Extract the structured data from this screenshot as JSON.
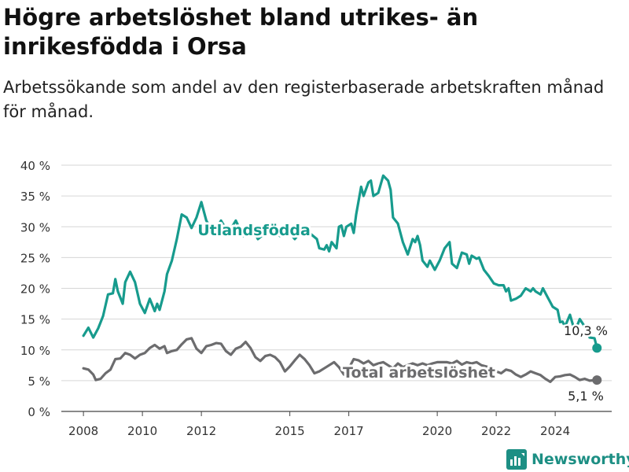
{
  "title": "Högre arbetslöshet bland utrikes- än inrikesfödda i Orsa",
  "subtitle": "Arbetssökande som andel av den registerbaserade arbetskraften månad för månad.",
  "brand": {
    "name": "Newsworthy",
    "icon": "newsworthy-logo-icon",
    "color": "#1d8f84"
  },
  "chart_data": {
    "type": "line",
    "title": "Högre arbetslöshet bland utrikes- än inrikesfödda i Orsa",
    "subtitle": "Arbetssökande som andel av den registerbaserade arbetskraften månad för månad.",
    "xlabel": "",
    "ylabel": "",
    "x_ticks": [
      "2008",
      "2010",
      "2012",
      "2015",
      "2017",
      "2020",
      "2022",
      "2024"
    ],
    "y_ticks": [
      "0 %",
      "5 %",
      "10 %",
      "15 %",
      "20 %",
      "25 %",
      "30 %",
      "35 %",
      "40 %"
    ],
    "ylim": [
      0,
      40
    ],
    "xlim": [
      "2007-04",
      "2025-12"
    ],
    "grid": "horizontal",
    "legend": "inline labels",
    "series": [
      {
        "name": "Utlandsfödda",
        "color": "#179b8d",
        "end_label": "10,3 %",
        "points": [
          [
            "2008-01",
            12.3
          ],
          [
            "2008-03",
            13.6
          ],
          [
            "2008-05",
            12.0
          ],
          [
            "2008-07",
            13.5
          ],
          [
            "2008-09",
            15.5
          ],
          [
            "2008-11",
            19.0
          ],
          [
            "2009-01",
            19.2
          ],
          [
            "2009-02",
            21.5
          ],
          [
            "2009-03",
            19.5
          ],
          [
            "2009-05",
            17.5
          ],
          [
            "2009-06",
            21.0
          ],
          [
            "2009-08",
            22.7
          ],
          [
            "2009-10",
            21.0
          ],
          [
            "2009-12",
            17.5
          ],
          [
            "2010-02",
            16.0
          ],
          [
            "2010-04",
            18.3
          ],
          [
            "2010-06",
            16.3
          ],
          [
            "2010-07",
            17.5
          ],
          [
            "2010-08",
            16.5
          ],
          [
            "2010-10",
            19.5
          ],
          [
            "2010-11",
            22.3
          ],
          [
            "2011-01",
            24.5
          ],
          [
            "2011-03",
            28.0
          ],
          [
            "2011-05",
            32.0
          ],
          [
            "2011-07",
            31.5
          ],
          [
            "2011-09",
            29.8
          ],
          [
            "2011-11",
            31.5
          ],
          [
            "2012-01",
            34.0
          ],
          [
            "2012-03",
            31.0
          ],
          [
            "2012-06",
            29.0
          ],
          [
            "2012-09",
            31.0
          ],
          [
            "2012-12",
            29.0
          ],
          [
            "2013-03",
            31.0
          ],
          [
            "2013-06",
            28.5
          ],
          [
            "2013-09",
            30.5
          ],
          [
            "2013-12",
            28.0
          ],
          [
            "2014-03",
            29.0
          ],
          [
            "2014-06",
            30.0
          ],
          [
            "2014-09",
            28.5
          ],
          [
            "2014-12",
            29.5
          ],
          [
            "2015-03",
            28.0
          ],
          [
            "2015-06",
            29.5
          ],
          [
            "2015-09",
            29.0
          ],
          [
            "2015-12",
            28.0
          ],
          [
            "2016-01",
            26.5
          ],
          [
            "2016-03",
            26.3
          ],
          [
            "2016-04",
            27.0
          ],
          [
            "2016-05",
            26.0
          ],
          [
            "2016-06",
            27.5
          ],
          [
            "2016-08",
            26.5
          ],
          [
            "2016-09",
            30.0
          ],
          [
            "2016-10",
            30.2
          ],
          [
            "2016-11",
            28.5
          ],
          [
            "2016-12",
            30.0
          ],
          [
            "2017-02",
            30.5
          ],
          [
            "2017-03",
            29.0
          ],
          [
            "2017-04",
            32.0
          ],
          [
            "2017-06",
            36.5
          ],
          [
            "2017-07",
            35.0
          ],
          [
            "2017-09",
            37.2
          ],
          [
            "2017-10",
            37.5
          ],
          [
            "2017-11",
            35.0
          ],
          [
            "2018-01",
            35.5
          ],
          [
            "2018-03",
            38.3
          ],
          [
            "2018-05",
            37.5
          ],
          [
            "2018-06",
            36.0
          ],
          [
            "2018-07",
            31.5
          ],
          [
            "2018-09",
            30.5
          ],
          [
            "2018-11",
            27.5
          ],
          [
            "2019-01",
            25.5
          ],
          [
            "2019-03",
            28.0
          ],
          [
            "2019-04",
            27.5
          ],
          [
            "2019-05",
            28.5
          ],
          [
            "2019-06",
            27.0
          ],
          [
            "2019-07",
            24.5
          ],
          [
            "2019-09",
            23.5
          ],
          [
            "2019-10",
            24.5
          ],
          [
            "2019-12",
            23.0
          ],
          [
            "2020-02",
            24.5
          ],
          [
            "2020-04",
            26.5
          ],
          [
            "2020-06",
            27.5
          ],
          [
            "2020-07",
            24.0
          ],
          [
            "2020-09",
            23.3
          ],
          [
            "2020-11",
            25.8
          ],
          [
            "2021-01",
            25.5
          ],
          [
            "2021-02",
            24.0
          ],
          [
            "2021-03",
            25.3
          ],
          [
            "2021-05",
            24.8
          ],
          [
            "2021-06",
            25.0
          ],
          [
            "2021-08",
            23.0
          ],
          [
            "2021-10",
            22.0
          ],
          [
            "2021-12",
            20.8
          ],
          [
            "2022-02",
            20.5
          ],
          [
            "2022-04",
            20.5
          ],
          [
            "2022-05",
            19.5
          ],
          [
            "2022-06",
            20.0
          ],
          [
            "2022-07",
            18.0
          ],
          [
            "2022-09",
            18.3
          ],
          [
            "2022-11",
            18.8
          ],
          [
            "2023-01",
            20.0
          ],
          [
            "2023-03",
            19.5
          ],
          [
            "2023-04",
            20.0
          ],
          [
            "2023-05",
            19.5
          ],
          [
            "2023-07",
            19.0
          ],
          [
            "2023-08",
            20.0
          ],
          [
            "2023-10",
            18.5
          ],
          [
            "2023-12",
            17.0
          ],
          [
            "2024-02",
            16.5
          ],
          [
            "2024-03",
            14.5
          ],
          [
            "2024-04",
            14.6
          ],
          [
            "2024-05",
            13.8
          ],
          [
            "2024-07",
            15.7
          ],
          [
            "2024-09",
            13.0
          ],
          [
            "2024-11",
            15.0
          ],
          [
            "2025-01",
            13.8
          ],
          [
            "2025-03",
            12.0
          ],
          [
            "2025-05",
            11.9
          ],
          [
            "2025-06",
            10.3
          ]
        ]
      },
      {
        "name": "Total arbetslöshet",
        "color": "#6c6c6e",
        "end_label": "5,1 %",
        "points": [
          [
            "2008-01",
            7.0
          ],
          [
            "2008-03",
            6.8
          ],
          [
            "2008-05",
            6.0
          ],
          [
            "2008-06",
            5.1
          ],
          [
            "2008-08",
            5.3
          ],
          [
            "2008-10",
            6.2
          ],
          [
            "2008-12",
            6.8
          ],
          [
            "2009-02",
            8.5
          ],
          [
            "2009-04",
            8.6
          ],
          [
            "2009-06",
            9.5
          ],
          [
            "2009-08",
            9.2
          ],
          [
            "2009-10",
            8.6
          ],
          [
            "2009-12",
            9.2
          ],
          [
            "2010-02",
            9.5
          ],
          [
            "2010-04",
            10.3
          ],
          [
            "2010-06",
            10.8
          ],
          [
            "2010-08",
            10.2
          ],
          [
            "2010-10",
            10.6
          ],
          [
            "2010-11",
            9.5
          ],
          [
            "2011-01",
            9.8
          ],
          [
            "2011-03",
            10.0
          ],
          [
            "2011-05",
            10.9
          ],
          [
            "2011-07",
            11.7
          ],
          [
            "2011-09",
            11.9
          ],
          [
            "2011-11",
            10.2
          ],
          [
            "2012-01",
            9.5
          ],
          [
            "2012-03",
            10.6
          ],
          [
            "2012-05",
            10.8
          ],
          [
            "2012-07",
            11.1
          ],
          [
            "2012-09",
            11.0
          ],
          [
            "2012-11",
            9.8
          ],
          [
            "2013-01",
            9.2
          ],
          [
            "2013-03",
            10.2
          ],
          [
            "2013-05",
            10.5
          ],
          [
            "2013-07",
            11.3
          ],
          [
            "2013-09",
            10.3
          ],
          [
            "2013-11",
            8.8
          ],
          [
            "2014-01",
            8.2
          ],
          [
            "2014-03",
            9.0
          ],
          [
            "2014-05",
            9.2
          ],
          [
            "2014-07",
            8.8
          ],
          [
            "2014-09",
            8.0
          ],
          [
            "2014-11",
            6.5
          ],
          [
            "2015-01",
            7.3
          ],
          [
            "2015-03",
            8.3
          ],
          [
            "2015-05",
            9.2
          ],
          [
            "2015-07",
            8.5
          ],
          [
            "2015-09",
            7.5
          ],
          [
            "2015-11",
            6.2
          ],
          [
            "2016-01",
            6.5
          ],
          [
            "2016-03",
            7.0
          ],
          [
            "2016-05",
            7.5
          ],
          [
            "2016-07",
            8.0
          ],
          [
            "2016-09",
            7.2
          ],
          [
            "2016-11",
            6.0
          ],
          [
            "2017-01",
            7.0
          ],
          [
            "2017-03",
            8.5
          ],
          [
            "2017-05",
            8.3
          ],
          [
            "2017-07",
            7.8
          ],
          [
            "2017-09",
            8.2
          ],
          [
            "2017-11",
            7.5
          ],
          [
            "2018-01",
            7.8
          ],
          [
            "2018-03",
            8.0
          ],
          [
            "2018-05",
            7.5
          ],
          [
            "2018-07",
            7.0
          ],
          [
            "2018-09",
            7.8
          ],
          [
            "2018-11",
            7.2
          ],
          [
            "2019-01",
            7.5
          ],
          [
            "2019-03",
            7.8
          ],
          [
            "2019-05",
            7.5
          ],
          [
            "2019-07",
            7.8
          ],
          [
            "2019-09",
            7.5
          ],
          [
            "2019-11",
            7.8
          ],
          [
            "2020-01",
            8.0
          ],
          [
            "2020-03",
            8.0
          ],
          [
            "2020-05",
            8.0
          ],
          [
            "2020-07",
            7.8
          ],
          [
            "2020-09",
            8.2
          ],
          [
            "2020-11",
            7.6
          ],
          [
            "2021-01",
            8.0
          ],
          [
            "2021-03",
            7.8
          ],
          [
            "2021-05",
            8.0
          ],
          [
            "2021-07",
            7.5
          ],
          [
            "2021-09",
            7.3
          ],
          [
            "2021-11",
            7.0
          ],
          [
            "2022-01",
            6.5
          ],
          [
            "2022-03",
            6.2
          ],
          [
            "2022-05",
            6.8
          ],
          [
            "2022-07",
            6.6
          ],
          [
            "2022-09",
            6.0
          ],
          [
            "2022-11",
            5.6
          ],
          [
            "2023-01",
            6.0
          ],
          [
            "2023-03",
            6.5
          ],
          [
            "2023-05",
            6.2
          ],
          [
            "2023-07",
            5.9
          ],
          [
            "2023-09",
            5.3
          ],
          [
            "2023-11",
            4.8
          ],
          [
            "2024-01",
            5.6
          ],
          [
            "2024-03",
            5.7
          ],
          [
            "2024-05",
            5.9
          ],
          [
            "2024-07",
            6.0
          ],
          [
            "2024-09",
            5.6
          ],
          [
            "2024-11",
            5.1
          ],
          [
            "2025-01",
            5.3
          ],
          [
            "2025-03",
            5.0
          ],
          [
            "2025-06",
            5.1
          ]
        ]
      }
    ]
  }
}
